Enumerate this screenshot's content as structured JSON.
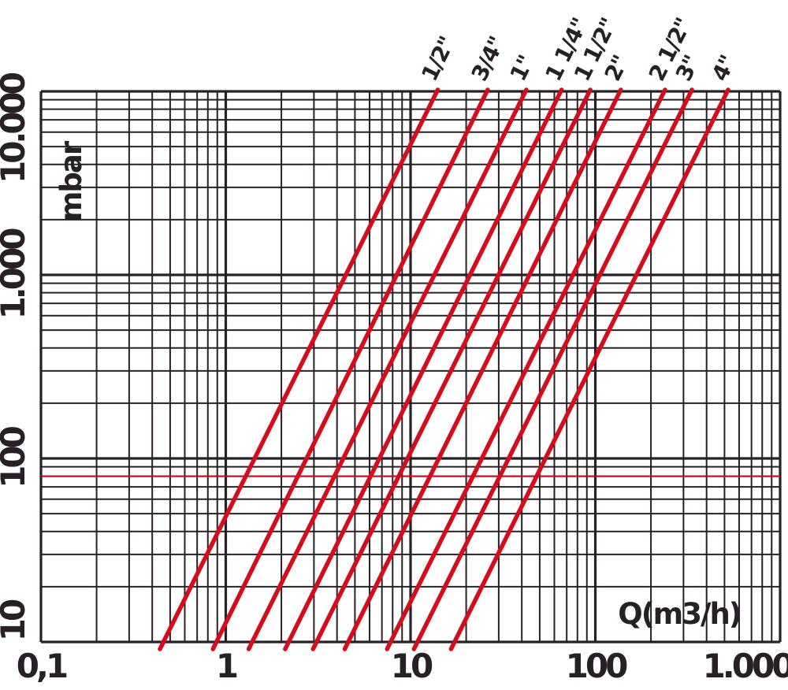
{
  "chart_data": {
    "type": "line",
    "title": "",
    "xlabel": "Q(m3/h)",
    "ylabel": "mbar",
    "x_axis": {
      "scale": "log",
      "min": 0.1,
      "max": 1000,
      "ticks": [
        {
          "value": 0.1,
          "label": "0,1"
        },
        {
          "value": 1,
          "label": "1"
        },
        {
          "value": 10,
          "label": "10"
        },
        {
          "value": 100,
          "label": "100"
        },
        {
          "value": 1000,
          "label": "1.000"
        }
      ]
    },
    "y_axis": {
      "scale": "log",
      "min": 10,
      "max": 10000,
      "ticks": [
        {
          "value": 10,
          "label": "10"
        },
        {
          "value": 100,
          "label": "100"
        },
        {
          "value": 1000,
          "label": "1.000"
        },
        {
          "value": 10000,
          "label": "10.000"
        }
      ]
    },
    "grid": {
      "major": true,
      "minor": true,
      "minor_steps": [
        2,
        3,
        4,
        5,
        6,
        7,
        8,
        9
      ]
    },
    "legend_position": "labels-above-lines",
    "series": [
      {
        "name": "1/2\"",
        "points": [
          {
            "q": 0.46,
            "mbar": 10
          },
          {
            "q": 13.9,
            "mbar": 10000
          }
        ]
      },
      {
        "name": "3/4\"",
        "points": [
          {
            "q": 0.89,
            "mbar": 10
          },
          {
            "q": 25.9,
            "mbar": 10000
          }
        ]
      },
      {
        "name": "1\"",
        "points": [
          {
            "q": 1.39,
            "mbar": 10
          },
          {
            "q": 41.9,
            "mbar": 10000
          }
        ]
      },
      {
        "name": "1 1/4\"",
        "points": [
          {
            "q": 2.19,
            "mbar": 10
          },
          {
            "q": 65.0,
            "mbar": 10000
          }
        ]
      },
      {
        "name": "1 1/2\"",
        "points": [
          {
            "q": 3.1,
            "mbar": 10
          },
          {
            "q": 93.0,
            "mbar": 10000
          }
        ]
      },
      {
        "name": "2\"",
        "points": [
          {
            "q": 4.6,
            "mbar": 10
          },
          {
            "q": 136.0,
            "mbar": 10000
          }
        ]
      },
      {
        "name": "2 1/2\"",
        "points": [
          {
            "q": 7.8,
            "mbar": 10
          },
          {
            "q": 236.0,
            "mbar": 10000
          }
        ]
      },
      {
        "name": "3\"",
        "points": [
          {
            "q": 10.9,
            "mbar": 10
          },
          {
            "q": 330.0,
            "mbar": 10000
          }
        ]
      },
      {
        "name": "4\"",
        "points": [
          {
            "q": 17.3,
            "mbar": 10
          },
          {
            "q": 518.0,
            "mbar": 10000
          }
        ]
      }
    ],
    "reference_line": {
      "axis": "y",
      "value_mbar": 80
    },
    "colors": {
      "series_red": "#d30d1c",
      "reference_red": "#e50019",
      "ink": "#272026",
      "background": "#ffffff"
    }
  }
}
